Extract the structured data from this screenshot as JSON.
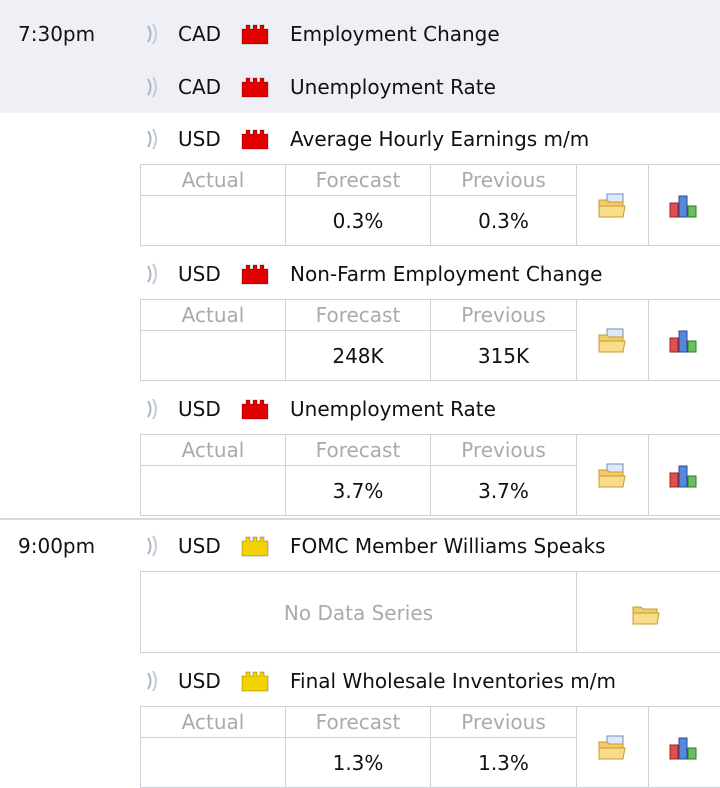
{
  "columns": [
    "Actual",
    "Forecast",
    "Previous"
  ],
  "groups": [
    {
      "time": "7:30pm",
      "events": [
        {
          "currency": "CAD",
          "impact_color": "#e20000",
          "title": "Employment Change"
        },
        {
          "currency": "CAD",
          "impact_color": "#e20000",
          "title": "Unemployment Rate"
        },
        {
          "currency": "USD",
          "impact_color": "#e20000",
          "title": "Average Hourly Earnings m/m",
          "forecast": "0.3%",
          "previous": "0.3%"
        },
        {
          "currency": "USD",
          "impact_color": "#e20000",
          "title": "Non-Farm Employment Change",
          "forecast": "248K",
          "previous": "315K"
        },
        {
          "currency": "USD",
          "impact_color": "#e20000",
          "title": "Unemployment Rate",
          "forecast": "3.7%",
          "previous": "3.7%"
        }
      ]
    },
    {
      "time": "9:00pm",
      "events": [
        {
          "currency": "USD",
          "impact_color": "#f2d200",
          "title": "FOMC Member Williams Speaks",
          "note": "No Data Series"
        },
        {
          "currency": "USD",
          "impact_color": "#f2d200",
          "title": "Final Wholesale Inventories m/m",
          "forecast": "1.3%",
          "previous": "1.3%"
        }
      ]
    }
  ]
}
